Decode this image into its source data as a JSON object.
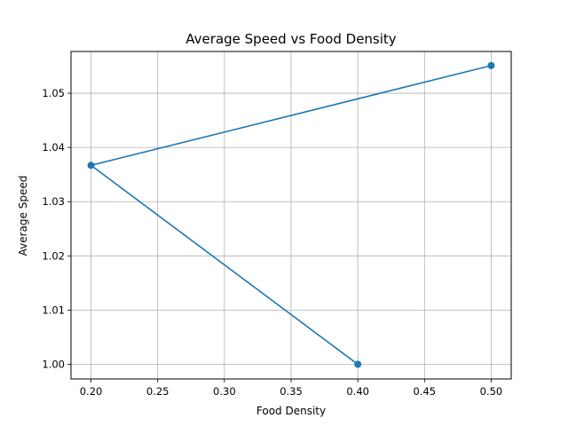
{
  "chart_data": {
    "type": "line",
    "title": "Average Speed vs Food Density",
    "xlabel": "Food Density",
    "ylabel": "Average Speed",
    "xlim": [
      0.185,
      0.515
    ],
    "ylim": [
      0.9973,
      1.0577
    ],
    "xticks": [
      0.2,
      0.25,
      0.3,
      0.35,
      0.4,
      0.45,
      0.5
    ],
    "xtick_labels": [
      "0.20",
      "0.25",
      "0.30",
      "0.35",
      "0.40",
      "0.45",
      "0.50"
    ],
    "yticks": [
      1.0,
      1.01,
      1.02,
      1.03,
      1.04,
      1.05
    ],
    "ytick_labels": [
      "1.00",
      "1.01",
      "1.02",
      "1.03",
      "1.04",
      "1.05"
    ],
    "grid": true,
    "series": [
      {
        "x": [
          0.5,
          0.2,
          0.4
        ],
        "y": [
          1.0551,
          1.0367,
          1.0
        ],
        "color": "#1f77b4",
        "marker": "circle"
      }
    ]
  }
}
